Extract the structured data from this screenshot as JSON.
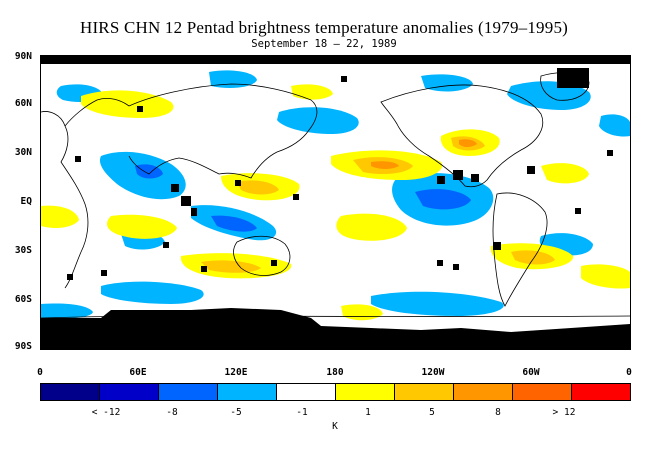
{
  "title": "HIRS CHN 12 Pentad brightness temperature anomalies (1979–1995)",
  "subtitle": "September 18 – 22, 1989",
  "lat_labels": [
    "90N",
    "60N",
    "30N",
    "EQ",
    "30S",
    "60S",
    "90S"
  ],
  "lon_labels": [
    "0",
    "60E",
    "120E",
    "180",
    "120W",
    "60W",
    "0"
  ],
  "colorbar": {
    "colors": [
      "#00008b",
      "#0000c8",
      "#0064ff",
      "#00b4ff",
      "#ffffff",
      "#ffff00",
      "#ffc800",
      "#ff9600",
      "#ff6400",
      "#ff0000"
    ],
    "labels": [
      "< -12",
      "-8",
      "-5",
      "-1",
      "1",
      "5",
      "8",
      "> 12"
    ],
    "unit": "K"
  },
  "map_colors": {
    "missing": "#000000",
    "warm_light": "#ffff00",
    "warm_mid": "#ffc800",
    "warm_strong": "#ff9600",
    "cool_light": "#00b4ff",
    "cool_mid": "#0064ff",
    "coast": "#000000"
  }
}
